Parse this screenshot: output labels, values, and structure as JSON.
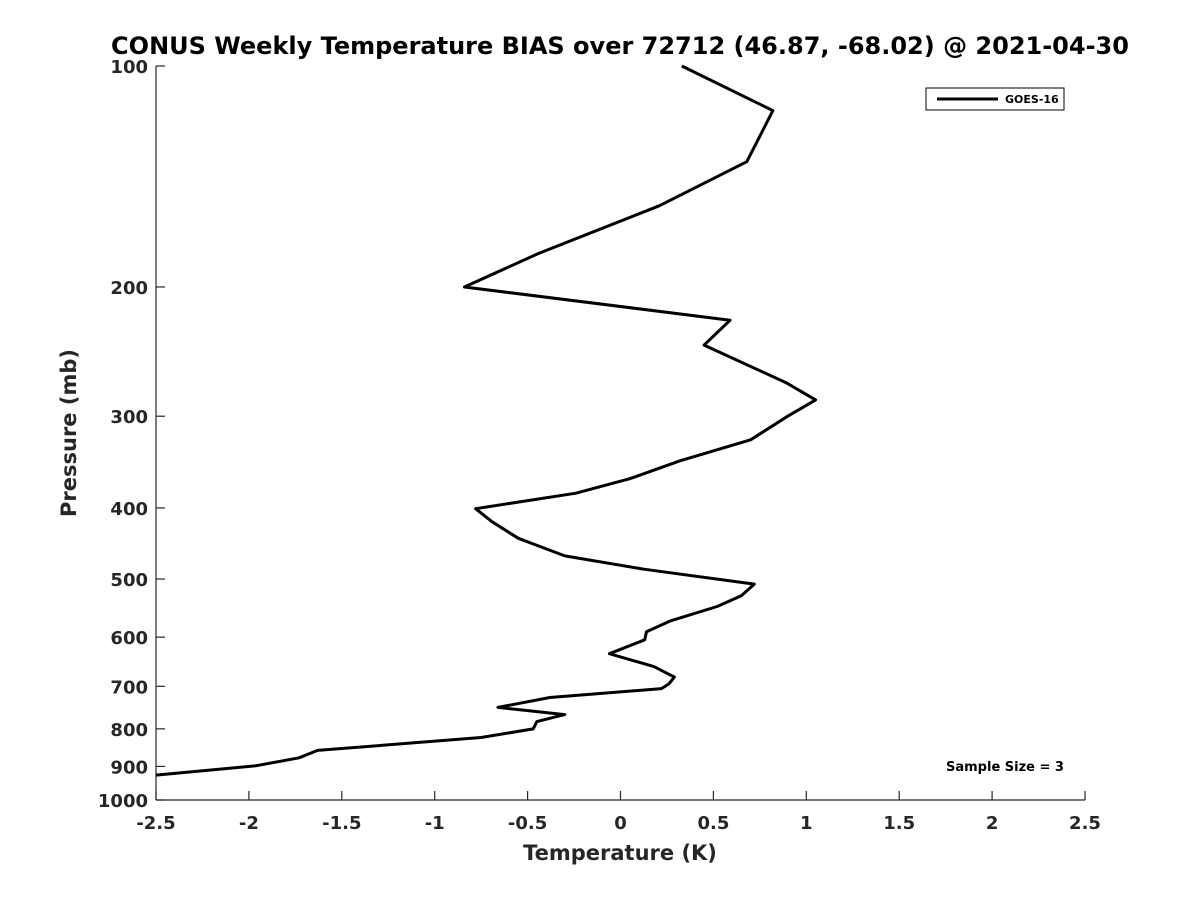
{
  "chart_data": {
    "type": "line",
    "title": "CONUS Weekly Temperature BIAS over 72712 (46.87, -68.02) @ 2021-04-30",
    "xlabel": "Temperature (K)",
    "ylabel": "Pressure (mb)",
    "xlim": [
      -2.5,
      2.5
    ],
    "ylim": [
      100,
      1000
    ],
    "yscale": "log",
    "y_reversed": true,
    "grid": false,
    "legend_position": "top-right",
    "xticks": [
      "-2.5",
      "-2",
      "-1.5",
      "-1",
      "-0.5",
      "0",
      "0.5",
      "1",
      "1.5",
      "2",
      "2.5"
    ],
    "xtick_values": [
      -2.5,
      -2,
      -1.5,
      -1,
      -0.5,
      0,
      0.5,
      1,
      1.5,
      2,
      2.5
    ],
    "yticks": [
      "100",
      "200",
      "300",
      "400",
      "500",
      "600",
      "700",
      "800",
      "900",
      "1000"
    ],
    "ytick_values": [
      100,
      200,
      300,
      400,
      500,
      600,
      700,
      800,
      900,
      1000
    ],
    "series": [
      {
        "name": "GOES-16",
        "color": "#000000",
        "x": [
          0.33,
          0.82,
          0.68,
          0.21,
          -0.44,
          -0.84,
          0.59,
          0.45,
          0.89,
          1.05,
          0.9,
          0.7,
          0.32,
          0.05,
          -0.24,
          -0.78,
          -0.69,
          -0.55,
          -0.3,
          0.13,
          0.72,
          0.65,
          0.52,
          0.27,
          0.14,
          0.13,
          -0.06,
          0.18,
          0.29,
          0.26,
          0.22,
          -0.38,
          -0.66,
          -0.3,
          -0.45,
          -0.47,
          -0.75,
          -1.63,
          -1.73,
          -1.96,
          -2.5
        ],
        "y": [
          100,
          115,
          135,
          155,
          180,
          200,
          222,
          240,
          270,
          285,
          300,
          323,
          345,
          365,
          382,
          401,
          418,
          440,
          465,
          485,
          508,
          527,
          545,
          570,
          590,
          605,
          632,
          658,
          680,
          695,
          705,
          725,
          748,
          765,
          782,
          800,
          822,
          856,
          876,
          898,
          925
        ]
      }
    ],
    "annotation": "Sample Size = 3"
  }
}
